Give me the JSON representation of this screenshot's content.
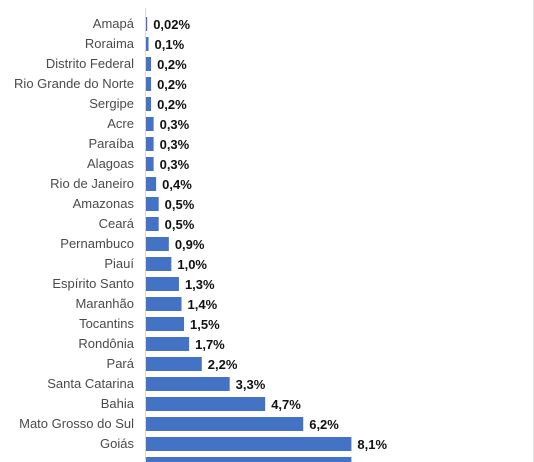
{
  "chart_data": {
    "type": "bar",
    "orientation": "horizontal",
    "categories": [
      "Amapá",
      "Roraima",
      "Distrito Federal",
      "Rio Grande do Norte",
      "Sergipe",
      "Acre",
      "Paraíba",
      "Alagoas",
      "Rio de Janeiro",
      "Amazonas",
      "Ceará",
      "Pernambuco",
      "Piauí",
      "Espírito Santo",
      "Maranhão",
      "Tocantins",
      "Rondônia",
      "Pará",
      "Santa Catarina",
      "Bahia",
      "Mato Grosso do Sul",
      "Goiás"
    ],
    "values": [
      0.02,
      0.1,
      0.2,
      0.2,
      0.2,
      0.3,
      0.3,
      0.3,
      0.4,
      0.5,
      0.5,
      0.9,
      1.0,
      1.3,
      1.4,
      1.5,
      1.7,
      2.2,
      3.3,
      4.7,
      6.2,
      8.1
    ],
    "data_labels": [
      "0,02%",
      "0,1%",
      "0,2%",
      "0,2%",
      "0,2%",
      "0,3%",
      "0,3%",
      "0,3%",
      "0,4%",
      "0,5%",
      "0,5%",
      "0,9%",
      "1,0%",
      "1,3%",
      "1,4%",
      "1,5%",
      "1,7%",
      "2,2%",
      "3,3%",
      "4,7%",
      "6,2%",
      "8,1%"
    ],
    "title": "",
    "xlabel": "",
    "ylabel": "",
    "xlim": [
      0,
      15.3
    ],
    "grid": false,
    "legend": "none",
    "bar_color": "#4472C4",
    "truncated_bar_value": 8.1
  }
}
